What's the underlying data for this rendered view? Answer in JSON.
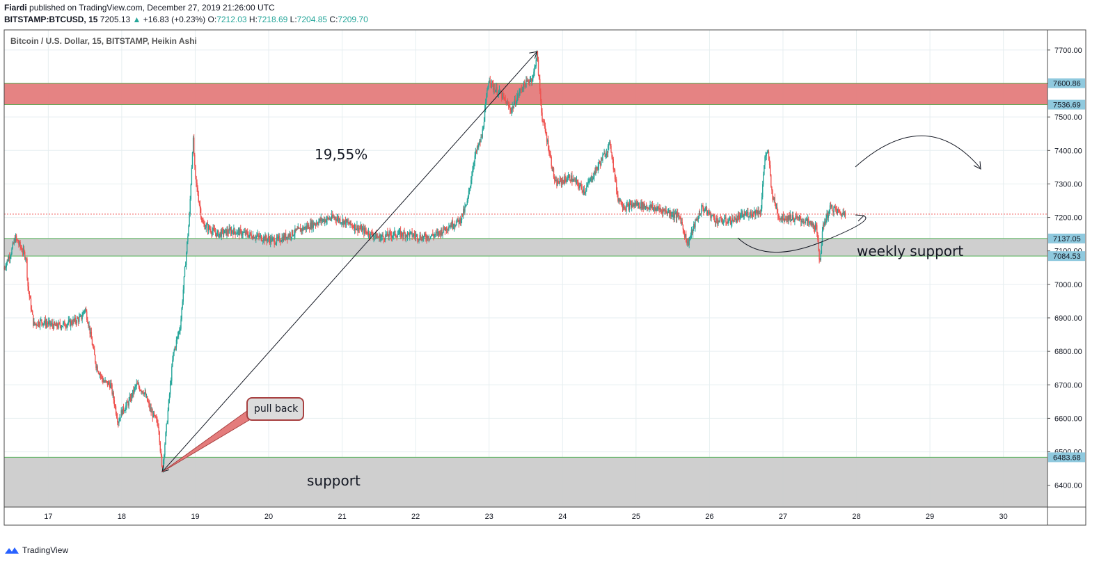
{
  "header": {
    "author": "Fiardi",
    "published": "published on TradingView.com, December 27, 2019 21:26:00 UTC",
    "symbol": "BITSTAMP:BTCUSD, 15",
    "last": "7205.13",
    "change": "+16.83 (+0.23%)",
    "o_label": "O:",
    "o_value": "7212.03",
    "h_label": "H:",
    "h_value": "7218.69",
    "l_label": "L:",
    "l_value": "7204.85",
    "c_label": "C:",
    "c_value": "7209.70"
  },
  "footer": {
    "brand": "TradingView",
    "logo_icon": "tradingview-logo-icon"
  },
  "colors": {
    "up": "#26a69a",
    "down": "#ef5350",
    "grid": "#e6eef0",
    "resistance_zone": "#e47c7c",
    "support_zone": "#cccccc",
    "zone_line": "#4caf50",
    "price_label_bg": "#8fc9de",
    "current_price_line": "#ef5350"
  },
  "chart_data": {
    "type": "candlestick",
    "title": "Bitcoin / U.S. Dollar, 15, BITSTAMP, Heikin Ashi",
    "ylim": [
      6335,
      7760
    ],
    "y_ticks": [
      6400,
      6500,
      6600,
      6700,
      6800,
      6900,
      7000,
      7100,
      7200,
      7300,
      7400,
      7500,
      7600,
      7700
    ],
    "y_tick_labels": [
      "6400.00",
      "6500.00",
      "6600.00",
      "6700.00",
      "6800.00",
      "6900.00",
      "7000.00",
      "7100.00",
      "7200.00",
      "7300.00",
      "7400.00",
      "7500.00",
      "7600.00",
      "7700.00"
    ],
    "x_ticks": [
      "17",
      "18",
      "19",
      "20",
      "21",
      "22",
      "23",
      "24",
      "25",
      "26",
      "27",
      "28",
      "29",
      "30"
    ],
    "x_range_days": [
      16.4,
      30.6
    ],
    "price_path": [
      [
        16.4,
        7050
      ],
      [
        16.5,
        7100
      ],
      [
        16.55,
        7140
      ],
      [
        16.7,
        7080
      ],
      [
        16.72,
        7000
      ],
      [
        16.8,
        6880
      ],
      [
        16.9,
        6890
      ],
      [
        17.1,
        6875
      ],
      [
        17.3,
        6885
      ],
      [
        17.45,
        6900
      ],
      [
        17.5,
        6930
      ],
      [
        17.55,
        6880
      ],
      [
        17.65,
        6760
      ],
      [
        17.75,
        6710
      ],
      [
        17.85,
        6700
      ],
      [
        17.95,
        6590
      ],
      [
        18.0,
        6620
      ],
      [
        18.1,
        6650
      ],
      [
        18.2,
        6700
      ],
      [
        18.3,
        6680
      ],
      [
        18.4,
        6620
      ],
      [
        18.5,
        6580
      ],
      [
        18.55,
        6440
      ],
      [
        18.62,
        6600
      ],
      [
        18.7,
        6790
      ],
      [
        18.8,
        6880
      ],
      [
        18.85,
        7020
      ],
      [
        18.92,
        7200
      ],
      [
        18.97,
        7440
      ],
      [
        19.0,
        7320
      ],
      [
        19.1,
        7180
      ],
      [
        19.3,
        7150
      ],
      [
        19.5,
        7160
      ],
      [
        19.7,
        7150
      ],
      [
        19.9,
        7140
      ],
      [
        20.1,
        7130
      ],
      [
        20.3,
        7150
      ],
      [
        20.5,
        7170
      ],
      [
        20.7,
        7190
      ],
      [
        20.9,
        7200
      ],
      [
        21.1,
        7180
      ],
      [
        21.3,
        7160
      ],
      [
        21.5,
        7140
      ],
      [
        21.7,
        7150
      ],
      [
        21.9,
        7150
      ],
      [
        22.1,
        7140
      ],
      [
        22.3,
        7150
      ],
      [
        22.45,
        7175
      ],
      [
        22.6,
        7190
      ],
      [
        22.7,
        7240
      ],
      [
        22.8,
        7380
      ],
      [
        22.9,
        7440
      ],
      [
        23.0,
        7620
      ],
      [
        23.05,
        7590
      ],
      [
        23.15,
        7570
      ],
      [
        23.3,
        7520
      ],
      [
        23.45,
        7590
      ],
      [
        23.6,
        7620
      ],
      [
        23.65,
        7690
      ],
      [
        23.72,
        7500
      ],
      [
        23.8,
        7420
      ],
      [
        23.9,
        7300
      ],
      [
        24.1,
        7320
      ],
      [
        24.3,
        7280
      ],
      [
        24.45,
        7340
      ],
      [
        24.6,
        7400
      ],
      [
        24.65,
        7420
      ],
      [
        24.75,
        7260
      ],
      [
        24.85,
        7230
      ],
      [
        25.0,
        7240
      ],
      [
        25.2,
        7230
      ],
      [
        25.4,
        7220
      ],
      [
        25.6,
        7200
      ],
      [
        25.7,
        7120
      ],
      [
        25.8,
        7180
      ],
      [
        25.9,
        7230
      ],
      [
        26.1,
        7190
      ],
      [
        26.3,
        7190
      ],
      [
        26.5,
        7210
      ],
      [
        26.7,
        7220
      ],
      [
        26.75,
        7380
      ],
      [
        26.8,
        7390
      ],
      [
        26.85,
        7270
      ],
      [
        26.95,
        7200
      ],
      [
        27.1,
        7200
      ],
      [
        27.3,
        7190
      ],
      [
        27.45,
        7170
      ],
      [
        27.5,
        7070
      ],
      [
        27.55,
        7180
      ],
      [
        27.65,
        7230
      ],
      [
        27.8,
        7210
      ],
      [
        27.85,
        7215
      ]
    ],
    "last_price": 7209.7,
    "zones": [
      {
        "name": "resistance",
        "from": 7536.69,
        "to": 7600.86
      },
      {
        "name": "weekly-support",
        "from": 7084.53,
        "to": 7137.05
      },
      {
        "name": "support",
        "from": 6335,
        "to": 6483.68
      }
    ],
    "price_labels": [
      "7600.86",
      "7536.69",
      "7137.05",
      "7084.53",
      "6483.68"
    ],
    "annotations": {
      "percent": "19,55%",
      "weekly_support": "weekly support",
      "support": "support",
      "callout": "pull back"
    }
  }
}
